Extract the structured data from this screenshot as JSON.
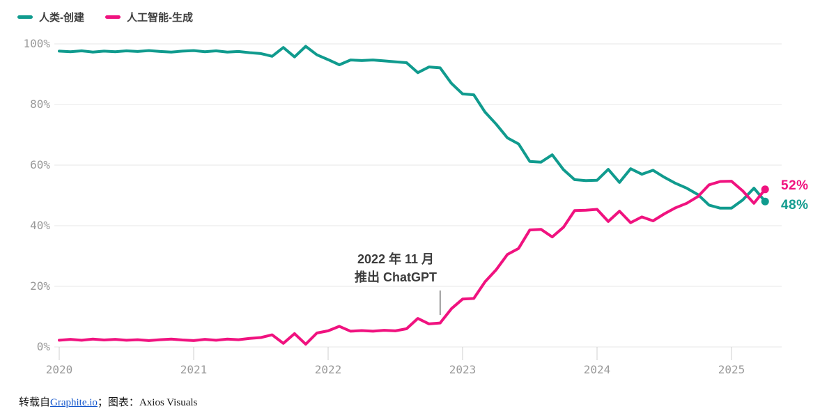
{
  "legend": {
    "items": [
      {
        "label": "人类-创建",
        "color": "#109b8e"
      },
      {
        "label": "人工智能-生成",
        "color": "#f0127f"
      }
    ]
  },
  "chart_data": {
    "type": "line",
    "x_unit": "month",
    "x_start": "2020-01",
    "x_end": "2025-04",
    "grid": "horizontal",
    "legend_position": "top-left",
    "y_axis": {
      "min": 0,
      "max": 100,
      "tick_values": [
        0,
        20,
        40,
        60,
        80,
        100
      ],
      "tick_labels": [
        "0%",
        "20%",
        "40%",
        "60%",
        "80%",
        "100%"
      ]
    },
    "x_axis": {
      "tick_labels": [
        "2020",
        "2021",
        "2022",
        "2023",
        "2024",
        "2025"
      ],
      "tick_month_indices": [
        0,
        12,
        24,
        36,
        48,
        60
      ]
    },
    "series": [
      {
        "name": "人类-创建",
        "color": "#109b8e",
        "end_label": "48%",
        "values": [
          97.6,
          97.4,
          97.7,
          97.3,
          97.6,
          97.4,
          97.7,
          97.5,
          97.8,
          97.5,
          97.3,
          97.6,
          97.8,
          97.4,
          97.7,
          97.3,
          97.5,
          97.1,
          96.8,
          95.9,
          98.8,
          95.7,
          99.2,
          96.4,
          94.8,
          93.1,
          94.7,
          94.5,
          94.7,
          94.4,
          94.1,
          93.8,
          90.5,
          92.4,
          92.1,
          87.0,
          83.5,
          83.2,
          77.5,
          73.5,
          69.0,
          67.0,
          61.2,
          61.0,
          63.4,
          58.5,
          55.2,
          54.9,
          55.0,
          58.6,
          54.3,
          58.8,
          57.0,
          58.3,
          56.0,
          54.0,
          52.4,
          50.3,
          46.8,
          45.8,
          45.8,
          48.5,
          52.4,
          48.0
        ]
      },
      {
        "name": "人工智能-生成",
        "color": "#f0127f",
        "end_label": "52%",
        "values": [
          2.2,
          2.5,
          2.2,
          2.6,
          2.3,
          2.5,
          2.2,
          2.4,
          2.1,
          2.4,
          2.6,
          2.3,
          2.1,
          2.5,
          2.2,
          2.6,
          2.4,
          2.8,
          3.1,
          4.0,
          1.2,
          4.4,
          0.9,
          4.6,
          5.3,
          6.8,
          5.2,
          5.4,
          5.2,
          5.5,
          5.3,
          6.0,
          9.4,
          7.6,
          7.9,
          12.6,
          15.8,
          16.0,
          21.5,
          25.5,
          30.5,
          32.5,
          38.6,
          38.8,
          36.3,
          39.5,
          45.0,
          45.1,
          45.4,
          41.4,
          44.8,
          41.0,
          42.9,
          41.6,
          43.9,
          45.9,
          47.4,
          49.6,
          53.5,
          54.6,
          54.7,
          51.5,
          47.4,
          52.0
        ]
      }
    ],
    "annotation": {
      "line1": "2022 年 11 月",
      "line2": "推出 ChatGPT",
      "month": "2022-11",
      "month_index": 34
    },
    "colors": {
      "grid": "#e7e7e7",
      "tick": "#cfcfcf",
      "axis_label": "#999999",
      "annotation_marker": "#9a9a9a"
    }
  },
  "footer": {
    "prefix": "转载自",
    "link": "Graphite.io",
    "separator": "；图表：",
    "credit": "Axios Visuals"
  }
}
